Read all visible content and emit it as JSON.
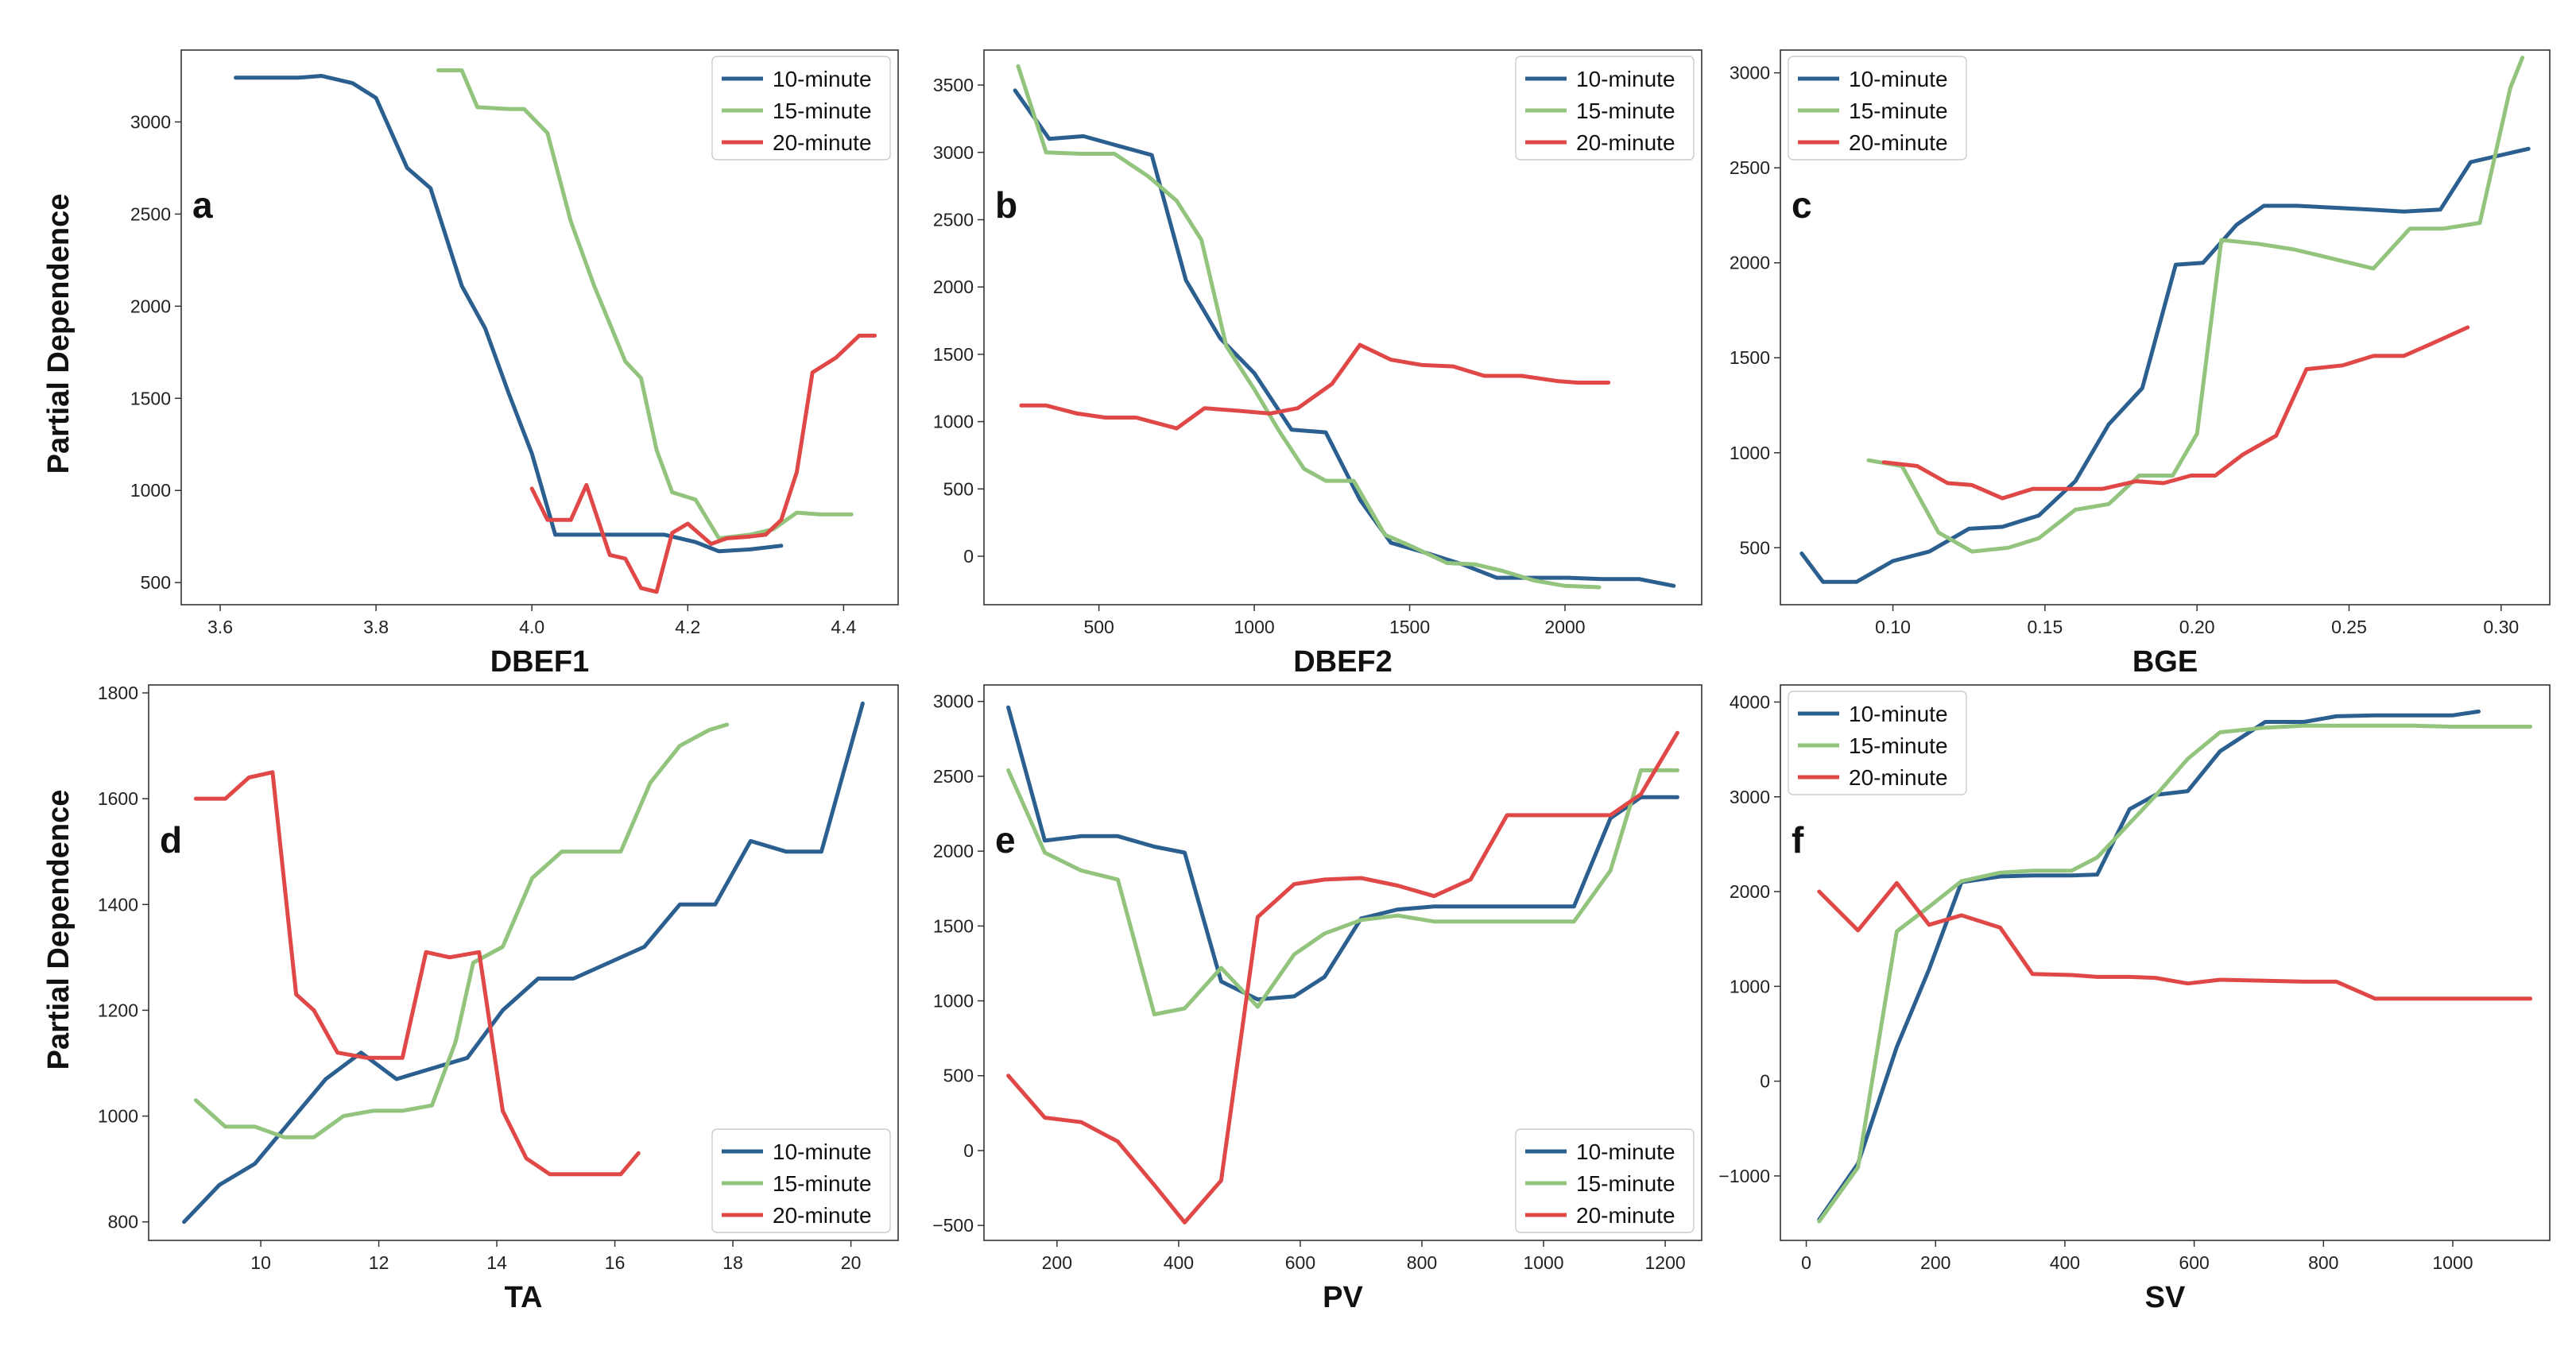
{
  "colors": {
    "10-minute": "#2b5f8f",
    "15-minute": "#93c47d",
    "20-minute": "#e04848"
  },
  "ylabel": "Partial Dependence",
  "chart_data": [
    {
      "type": "line",
      "letter": "a",
      "xlabel": "DBEF1",
      "ylabel": "Partial Dependence",
      "xlim": [
        3.55,
        4.47
      ],
      "ylim": [
        380,
        3390
      ],
      "xticks": [
        3.6,
        3.8,
        4.0,
        4.2,
        4.4
      ],
      "xtick_labels": [
        "3.6",
        "3.8",
        "4.0",
        "4.2",
        "4.4"
      ],
      "yticks": [
        500,
        1000,
        1500,
        2000,
        2500,
        3000
      ],
      "ytick_labels": [
        "500",
        "1000",
        "1500",
        "2000",
        "2500",
        "3000"
      ],
      "legend_loc": "top-right",
      "series": [
        {
          "name": "10-minute",
          "x": [
            3.62,
            3.7,
            3.73,
            3.77,
            3.8,
            3.84,
            3.87,
            3.91,
            3.94,
            3.97,
            4.0,
            4.03,
            4.06,
            4.1,
            4.13,
            4.17,
            4.21,
            4.24,
            4.28,
            4.32
          ],
          "y": [
            3240,
            3240,
            3250,
            3210,
            3130,
            2750,
            2640,
            2110,
            1880,
            1530,
            1200,
            760,
            760,
            760,
            760,
            760,
            720,
            670,
            680,
            700
          ]
        },
        {
          "name": "15-minute",
          "x": [
            3.88,
            3.91,
            3.93,
            3.97,
            3.99,
            4.02,
            4.05,
            4.08,
            4.12,
            4.14,
            4.16,
            4.18,
            4.21,
            4.24,
            4.28,
            4.31,
            4.34,
            4.37,
            4.41
          ],
          "y": [
            3280,
            3280,
            3080,
            3070,
            3070,
            2940,
            2460,
            2110,
            1700,
            1610,
            1220,
            990,
            950,
            740,
            760,
            790,
            880,
            870,
            870
          ]
        },
        {
          "name": "20-minute",
          "x": [
            4.0,
            4.02,
            4.05,
            4.07,
            4.1,
            4.12,
            4.14,
            4.16,
            4.18,
            4.2,
            4.23,
            4.25,
            4.28,
            4.3,
            4.32,
            4.34,
            4.36,
            4.39,
            4.42,
            4.44
          ],
          "y": [
            1010,
            840,
            840,
            1030,
            650,
            630,
            470,
            450,
            770,
            820,
            710,
            740,
            750,
            760,
            840,
            1100,
            1640,
            1720,
            1840,
            1840
          ]
        }
      ]
    },
    {
      "type": "line",
      "letter": "b",
      "xlabel": "DBEF2",
      "ylabel": "",
      "xlim": [
        130,
        2440
      ],
      "ylim": [
        -360,
        3760
      ],
      "xticks": [
        500,
        1000,
        1500,
        2000
      ],
      "xtick_labels": [
        "500",
        "1000",
        "1500",
        "2000"
      ],
      "yticks": [
        0,
        500,
        1000,
        1500,
        2000,
        2500,
        3000,
        3500
      ],
      "ytick_labels": [
        "0",
        "500",
        "1000",
        "1500",
        "2000",
        "2500",
        "3000",
        "3500"
      ],
      "legend_loc": "top-right",
      "series": [
        {
          "name": "10-minute",
          "x": [
            230,
            340,
            450,
            560,
            670,
            780,
            890,
            1000,
            1120,
            1230,
            1340,
            1440,
            1560,
            1670,
            1780,
            1890,
            2010,
            2120,
            2240,
            2350
          ],
          "y": [
            3460,
            3100,
            3120,
            3050,
            2980,
            2050,
            1620,
            1360,
            940,
            920,
            420,
            100,
            20,
            -60,
            -160,
            -160,
            -160,
            -170,
            -170,
            -220
          ]
        },
        {
          "name": "15-minute",
          "x": [
            240,
            330,
            440,
            550,
            660,
            750,
            830,
            910,
            1000,
            1080,
            1160,
            1230,
            1320,
            1420,
            1510,
            1620,
            1710,
            1800,
            1900,
            2000,
            2110
          ],
          "y": [
            3640,
            3000,
            2990,
            2990,
            2820,
            2640,
            2350,
            1560,
            1240,
            930,
            650,
            560,
            560,
            160,
            70,
            -50,
            -60,
            -110,
            -180,
            -220,
            -230
          ]
        },
        {
          "name": "20-minute",
          "x": [
            250,
            330,
            430,
            520,
            620,
            750,
            840,
            950,
            1050,
            1140,
            1250,
            1340,
            1440,
            1540,
            1640,
            1740,
            1860,
            1980,
            2040,
            2140
          ],
          "y": [
            1120,
            1120,
            1060,
            1030,
            1030,
            950,
            1100,
            1080,
            1060,
            1100,
            1280,
            1570,
            1460,
            1420,
            1410,
            1340,
            1340,
            1300,
            1290,
            1290
          ]
        }
      ]
    },
    {
      "type": "line",
      "letter": "c",
      "xlabel": "BGE",
      "ylabel": "",
      "xlim": [
        0.063,
        0.316
      ],
      "ylim": [
        200,
        3120
      ],
      "xticks": [
        0.1,
        0.15,
        0.2,
        0.25,
        0.3
      ],
      "xtick_labels": [
        "0.10",
        "0.15",
        "0.20",
        "0.25",
        "0.30"
      ],
      "yticks": [
        500,
        1000,
        1500,
        2000,
        2500,
        3000
      ],
      "ytick_labels": [
        "500",
        "1000",
        "1500",
        "2000",
        "2500",
        "3000"
      ],
      "legend_loc": "top-left",
      "series": [
        {
          "name": "10-minute",
          "x": [
            0.07,
            0.077,
            0.088,
            0.1,
            0.112,
            0.125,
            0.136,
            0.148,
            0.16,
            0.171,
            0.182,
            0.193,
            0.202,
            0.213,
            0.222,
            0.233,
            0.245,
            0.257,
            0.268,
            0.28,
            0.29,
            0.309
          ],
          "y": [
            470,
            320,
            320,
            430,
            480,
            600,
            610,
            670,
            850,
            1150,
            1340,
            1990,
            2000,
            2200,
            2300,
            2300,
            2290,
            2280,
            2270,
            2280,
            2530,
            2600
          ]
        },
        {
          "name": "15-minute",
          "x": [
            0.092,
            0.103,
            0.115,
            0.126,
            0.138,
            0.148,
            0.16,
            0.171,
            0.181,
            0.192,
            0.2,
            0.208,
            0.22,
            0.232,
            0.245,
            0.258,
            0.27,
            0.281,
            0.293,
            0.303,
            0.307
          ],
          "y": [
            960,
            930,
            580,
            480,
            500,
            550,
            700,
            730,
            880,
            880,
            1100,
            2120,
            2100,
            2070,
            2020,
            1970,
            2180,
            2180,
            2210,
            2920,
            3080
          ]
        },
        {
          "name": "20-minute",
          "x": [
            0.097,
            0.108,
            0.118,
            0.126,
            0.136,
            0.146,
            0.158,
            0.169,
            0.18,
            0.189,
            0.198,
            0.206,
            0.215,
            0.226,
            0.236,
            0.248,
            0.258,
            0.268,
            0.278,
            0.289
          ],
          "y": [
            950,
            930,
            840,
            830,
            760,
            810,
            810,
            810,
            850,
            840,
            880,
            880,
            990,
            1090,
            1440,
            1460,
            1510,
            1510,
            1580,
            1660
          ]
        }
      ]
    },
    {
      "type": "line",
      "letter": "d",
      "xlabel": "TA",
      "ylabel": "Partial Dependence",
      "xlim": [
        8.1,
        20.8
      ],
      "ylim": [
        765,
        1815
      ],
      "xticks": [
        10,
        12,
        14,
        16,
        18,
        20
      ],
      "xtick_labels": [
        "10",
        "12",
        "14",
        "16",
        "18",
        "20"
      ],
      "yticks": [
        800,
        1000,
        1200,
        1400,
        1600,
        1800
      ],
      "ytick_labels": [
        "800",
        "1000",
        "1200",
        "1400",
        "1600",
        "1800"
      ],
      "legend_loc": "bottom-right",
      "series": [
        {
          "name": "10-minute",
          "x": [
            8.7,
            9.3,
            9.9,
            10.5,
            11.1,
            11.7,
            12.3,
            12.9,
            13.5,
            14.1,
            14.7,
            15.3,
            15.9,
            16.5,
            17.1,
            17.7,
            18.3,
            18.9,
            19.5,
            20.2
          ],
          "y": [
            800,
            870,
            910,
            990,
            1070,
            1120,
            1070,
            1090,
            1110,
            1200,
            1260,
            1260,
            1290,
            1320,
            1400,
            1400,
            1520,
            1500,
            1500,
            1780
          ]
        },
        {
          "name": "15-minute",
          "x": [
            8.9,
            9.4,
            9.9,
            10.4,
            10.9,
            11.4,
            11.9,
            12.4,
            12.9,
            13.3,
            13.6,
            14.1,
            14.6,
            15.1,
            15.6,
            16.1,
            16.6,
            17.1,
            17.6,
            17.9
          ],
          "y": [
            1030,
            980,
            980,
            960,
            960,
            1000,
            1010,
            1010,
            1020,
            1140,
            1290,
            1320,
            1450,
            1500,
            1500,
            1500,
            1630,
            1700,
            1730,
            1740
          ]
        },
        {
          "name": "20-minute",
          "x": [
            8.9,
            9.4,
            9.8,
            10.2,
            10.6,
            10.9,
            11.3,
            11.8,
            12.4,
            12.8,
            13.2,
            13.7,
            14.1,
            14.5,
            14.9,
            15.3,
            15.7,
            16.1,
            16.4
          ],
          "y": [
            1600,
            1600,
            1640,
            1650,
            1230,
            1200,
            1120,
            1110,
            1110,
            1310,
            1300,
            1310,
            1010,
            920,
            890,
            890,
            890,
            890,
            930
          ]
        }
      ]
    },
    {
      "type": "line",
      "letter": "e",
      "xlabel": "PV",
      "ylabel": "",
      "xlim": [
        80,
        1260
      ],
      "ylim": [
        -600,
        3110
      ],
      "xticks": [
        200,
        400,
        600,
        800,
        1000,
        1200
      ],
      "xtick_labels": [
        "200",
        "400",
        "600",
        "800",
        "1000",
        "1200"
      ],
      "yticks": [
        -500,
        0,
        500,
        1000,
        1500,
        2000,
        2500,
        3000
      ],
      "ytick_labels": [
        "−500",
        "0",
        "500",
        "1000",
        "1500",
        "2000",
        "2500",
        "3000"
      ],
      "legend_loc": "bottom-right",
      "series": [
        {
          "name": "10-minute",
          "x": [
            120,
            180,
            240,
            300,
            360,
            410,
            470,
            530,
            590,
            640,
            700,
            760,
            820,
            880,
            940,
            1000,
            1050,
            1110,
            1160,
            1220
          ],
          "y": [
            2960,
            2070,
            2100,
            2100,
            2030,
            1990,
            1130,
            1010,
            1030,
            1160,
            1550,
            1610,
            1630,
            1630,
            1630,
            1630,
            1630,
            2220,
            2360,
            2360
          ]
        },
        {
          "name": "15-minute",
          "x": [
            120,
            180,
            240,
            300,
            360,
            410,
            470,
            530,
            590,
            640,
            700,
            760,
            820,
            880,
            940,
            1000,
            1050,
            1110,
            1160,
            1220
          ],
          "y": [
            2540,
            1990,
            1870,
            1810,
            910,
            950,
            1220,
            960,
            1310,
            1450,
            1540,
            1570,
            1530,
            1530,
            1530,
            1530,
            1530,
            1870,
            2540,
            2540
          ]
        },
        {
          "name": "20-minute",
          "x": [
            120,
            180,
            240,
            300,
            360,
            410,
            470,
            530,
            590,
            640,
            700,
            760,
            820,
            880,
            940,
            1000,
            1050,
            1110,
            1160,
            1220
          ],
          "y": [
            500,
            220,
            190,
            60,
            -230,
            -480,
            -200,
            1560,
            1780,
            1810,
            1820,
            1770,
            1700,
            1810,
            2240,
            2240,
            2240,
            2240,
            2380,
            2790
          ]
        }
      ]
    },
    {
      "type": "line",
      "letter": "f",
      "xlabel": "SV",
      "ylabel": "",
      "xlim": [
        -40,
        1150
      ],
      "ylim": [
        -1680,
        4180
      ],
      "xticks": [
        0,
        200,
        400,
        600,
        800,
        1000
      ],
      "xtick_labels": [
        "0",
        "200",
        "400",
        "600",
        "800",
        "1000"
      ],
      "yticks": [
        -1000,
        0,
        1000,
        2000,
        3000,
        4000
      ],
      "ytick_labels": [
        "−1000",
        "0",
        "1000",
        "2000",
        "3000",
        "4000"
      ],
      "legend_loc": "top-left",
      "series": [
        {
          "name": "10-minute",
          "x": [
            20,
            80,
            140,
            190,
            240,
            300,
            350,
            410,
            450,
            500,
            540,
            590,
            640,
            710,
            770,
            820,
            880,
            940,
            1000,
            1040
          ],
          "y": [
            -1460,
            -870,
            360,
            1180,
            2100,
            2160,
            2170,
            2170,
            2180,
            2870,
            3020,
            3060,
            3480,
            3790,
            3790,
            3850,
            3860,
            3860,
            3860,
            3900
          ]
        },
        {
          "name": "15-minute",
          "x": [
            20,
            80,
            140,
            190,
            240,
            300,
            350,
            410,
            450,
            500,
            540,
            590,
            640,
            710,
            770,
            820,
            880,
            940,
            1000,
            1050,
            1080,
            1120
          ],
          "y": [
            -1480,
            -910,
            1580,
            1840,
            2110,
            2200,
            2220,
            2220,
            2360,
            2720,
            3010,
            3400,
            3680,
            3730,
            3750,
            3750,
            3750,
            3750,
            3740,
            3740,
            3740,
            3740
          ]
        },
        {
          "name": "20-minute",
          "x": [
            20,
            80,
            140,
            190,
            240,
            300,
            350,
            410,
            450,
            500,
            540,
            590,
            640,
            710,
            770,
            820,
            880,
            940,
            1000,
            1040,
            1080,
            1120
          ],
          "y": [
            2000,
            1590,
            2090,
            1650,
            1750,
            1620,
            1130,
            1120,
            1100,
            1100,
            1090,
            1030,
            1070,
            1060,
            1050,
            1050,
            870,
            870,
            870,
            870,
            870,
            870
          ]
        }
      ]
    }
  ]
}
